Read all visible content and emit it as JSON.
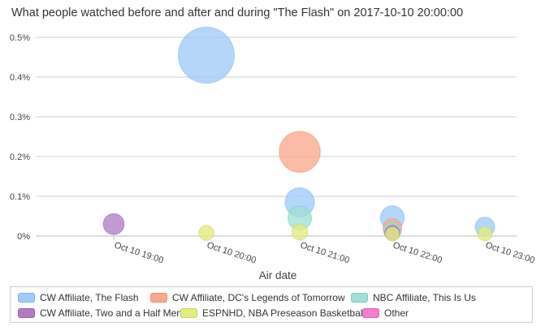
{
  "chart_data": {
    "type": "scatter",
    "title": "What people watched before and after and during \"The Flash\" on 2017-10-10 20:00:00",
    "xlabel": "Air date",
    "ylabel": "",
    "x_ticks": [
      "Oct 10 19:00",
      "Oct 10 20:00",
      "Oct 10 21:00",
      "Oct 10 22:00",
      "Oct 10 23:00"
    ],
    "y_ticks": [
      "0%",
      "0.1%",
      "0.2%",
      "0.3%",
      "0.4%",
      "0.5%"
    ],
    "ylim": [
      0,
      0.5
    ],
    "grid": true,
    "legend_position": "bottom",
    "series": [
      {
        "name": "CW Affiliate, The Flash",
        "color": "#9ecbf7",
        "border": "#7fb5ea",
        "points": [
          {
            "x": "Oct 10 20:00",
            "y": 0.455
          },
          {
            "x": "Oct 10 21:00",
            "y": 0.085
          },
          {
            "x": "Oct 10 22:00",
            "y": 0.046
          },
          {
            "x": "Oct 10 23:00",
            "y": 0.023
          }
        ]
      },
      {
        "name": "CW Affiliate, DC's Legends of Tomorrow",
        "color": "#f9a98e",
        "border": "#ec8f70",
        "points": [
          {
            "x": "Oct 10 21:00",
            "y": 0.212
          },
          {
            "x": "Oct 10 22:00",
            "y": 0.02
          }
        ]
      },
      {
        "name": "NBC Affiliate, This Is Us",
        "color": "#9fe0d3",
        "border": "#7ccdbd",
        "points": [
          {
            "x": "Oct 10 21:00",
            "y": 0.045
          },
          {
            "x": "Oct 10 22:00",
            "y": 0.013
          }
        ]
      },
      {
        "name": "CW Affiliate, Two and a Half Men",
        "color": "#b07cc6",
        "border": "#9a63b0",
        "points": [
          {
            "x": "Oct 10 19:00",
            "y": 0.03
          },
          {
            "x": "Oct 10 22:00",
            "y": 0.008
          }
        ]
      },
      {
        "name": "ESPNHD, NBA Preseason Basketball",
        "color": "#e3ec7e",
        "border": "#c9d45e",
        "points": [
          {
            "x": "Oct 10 20:00",
            "y": 0.008
          },
          {
            "x": "Oct 10 21:00",
            "y": 0.01
          },
          {
            "x": "Oct 10 22:00",
            "y": 0.005
          },
          {
            "x": "Oct 10 23:00",
            "y": 0.006
          }
        ]
      },
      {
        "name": "Other",
        "color": "#f77fd0",
        "border": "#e05cb8",
        "points": []
      }
    ]
  }
}
